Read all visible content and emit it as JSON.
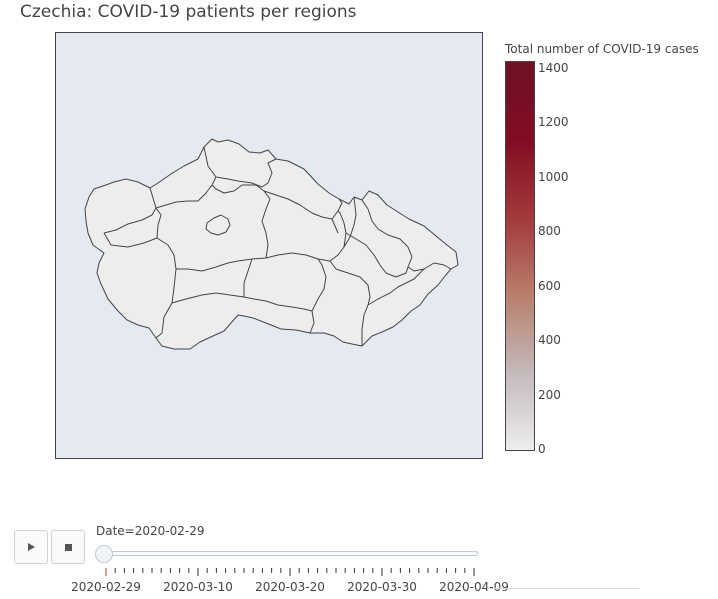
{
  "title": "Czechia: COVID-19 patients per regions",
  "colorbar": {
    "title": "Total number of COVID-19 cases",
    "range": [
      0,
      1400
    ],
    "ticks": [
      "1400",
      "1200",
      "1000",
      "800",
      "600",
      "400",
      "200",
      "0"
    ],
    "colors": [
      "#ededec",
      "#c3b9ba",
      "#b97e6c",
      "#a3393b",
      "#820c24",
      "#6e1224"
    ]
  },
  "map": {
    "background": "#e5e9f2",
    "region_fill": "#efeced",
    "border_color": "#444444"
  },
  "controls": {
    "play_icon": "play-icon",
    "stop_icon": "stop-icon"
  },
  "slider": {
    "label": "Date=2020-02-29",
    "dates": [
      "2020-02-29",
      "2020-03-10",
      "2020-03-20",
      "2020-03-30",
      "2020-04-09"
    ],
    "selected_index": 0,
    "tick_count": 41
  }
}
